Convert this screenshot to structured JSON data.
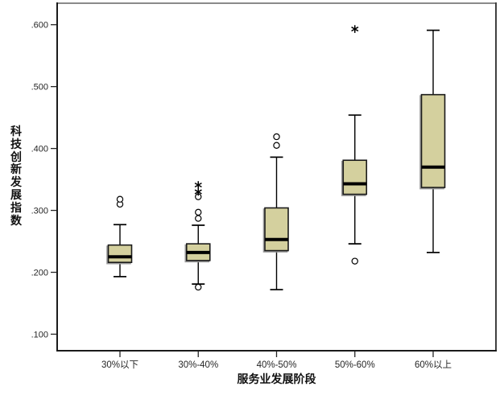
{
  "chart_data": {
    "type": "boxplot",
    "title": "",
    "xlabel": "服务业发展阶段",
    "ylabel": "科技创新发展指数",
    "ylim": [
      0.072,
      0.636
    ],
    "grid": false,
    "legend": false,
    "y_ticks": [
      {
        "label": ".600",
        "value": 0.6
      },
      {
        "label": ".500",
        "value": 0.5
      },
      {
        "label": ".400",
        "value": 0.4
      },
      {
        "label": ".300",
        "value": 0.3
      },
      {
        "label": ".200",
        "value": 0.2
      },
      {
        "label": ".100",
        "value": 0.1
      }
    ],
    "categories": [
      "30%以下",
      "30%-40%",
      "40%-50%",
      "50%-60%",
      "60%以上"
    ],
    "boxes": [
      {
        "category": "30%以下",
        "whisker_low": 0.193,
        "q1": 0.216,
        "median": 0.225,
        "q3": 0.244,
        "whisker_high": 0.277,
        "outliers": [
          0.31,
          0.318
        ],
        "extremes": []
      },
      {
        "category": "30%-40%",
        "whisker_low": 0.181,
        "q1": 0.219,
        "median": 0.232,
        "q3": 0.246,
        "whisker_high": 0.276,
        "outliers": [
          0.176,
          0.287,
          0.297,
          0.322
        ],
        "extremes": [
          0.33,
          0.341
        ]
      },
      {
        "category": "40%-50%",
        "whisker_low": 0.172,
        "q1": 0.235,
        "median": 0.253,
        "q3": 0.304,
        "whisker_high": 0.386,
        "outliers": [
          0.405,
          0.419
        ],
        "extremes": []
      },
      {
        "category": "50%-60%",
        "whisker_low": 0.246,
        "q1": 0.326,
        "median": 0.343,
        "q3": 0.381,
        "whisker_high": 0.454,
        "outliers": [
          0.218
        ],
        "extremes": [
          0.593
        ]
      },
      {
        "category": "60%以上",
        "whisker_low": 0.232,
        "q1": 0.337,
        "median": 0.37,
        "q3": 0.487,
        "whisker_high": 0.591,
        "outliers": [],
        "extremes": []
      }
    ],
    "colors": {
      "box_fill": "#d4d09e",
      "box_border": "#1a1a1a",
      "box_shadow": "#9a9a9a",
      "whisker": "#000000",
      "frame_top": "#8a8a8a",
      "frame_right": "#404040",
      "frame": "#1a1a1a",
      "text": "#262626"
    }
  }
}
